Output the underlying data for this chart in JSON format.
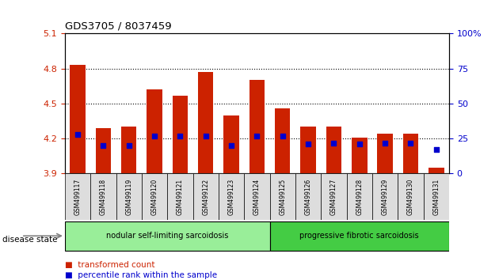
{
  "title": "GDS3705 / 8037459",
  "samples": [
    "GSM499117",
    "GSM499118",
    "GSM499119",
    "GSM499120",
    "GSM499121",
    "GSM499122",
    "GSM499123",
    "GSM499124",
    "GSM499125",
    "GSM499126",
    "GSM499127",
    "GSM499128",
    "GSM499129",
    "GSM499130",
    "GSM499131"
  ],
  "transformed_count": [
    4.83,
    4.29,
    4.3,
    4.62,
    4.57,
    4.77,
    4.4,
    4.7,
    4.46,
    4.3,
    4.3,
    4.21,
    4.24,
    4.24,
    3.95
  ],
  "percentile_rank": [
    28,
    20,
    20,
    27,
    27,
    27,
    20,
    27,
    27,
    21,
    22,
    21,
    22,
    22,
    17
  ],
  "ylim_left": [
    3.9,
    5.1
  ],
  "ylim_right": [
    0,
    100
  ],
  "yticks_left": [
    3.9,
    4.2,
    4.5,
    4.8,
    5.1
  ],
  "yticks_right": [
    0,
    25,
    50,
    75,
    100
  ],
  "bar_color": "#cc2200",
  "dot_color": "#0000cc",
  "grid_color": "#000000",
  "group1_label": "nodular self-limiting sarcoidosis",
  "group1_color": "#99ee99",
  "group2_label": "progressive fibrotic sarcoidosis",
  "group2_color": "#44cc44",
  "group1_samples": 8,
  "group2_samples": 7,
  "disease_state_label": "disease state",
  "legend_red_label": "transformed count",
  "legend_blue_label": "percentile rank within the sample",
  "base_value": 3.9,
  "bar_width": 0.6,
  "tick_label_color_left": "#cc2200",
  "tick_label_color_right": "#0000cc"
}
